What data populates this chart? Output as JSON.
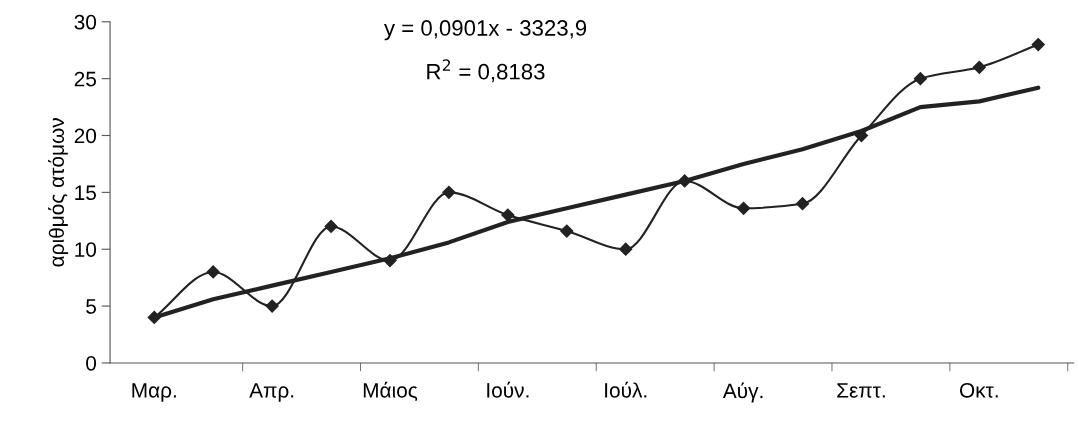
{
  "chart_data": {
    "type": "line",
    "ylabel": "αριθμός ατόμων",
    "annotations": [
      "y = 0,0901x - 3323,9",
      "R$^{2}$ = 0,8183"
    ],
    "categories": [
      "Μαρ.",
      null,
      "Απρ.",
      null,
      "Μάιος",
      null,
      "Ιούν.",
      null,
      "Ιούλ.",
      null,
      "Αύγ.",
      null,
      "Σεπτ.",
      null,
      "Οκτ.",
      null
    ],
    "series": [
      {
        "color": "#222222",
        "marker": "diamond",
        "values": [
          4,
          8,
          5,
          12,
          9,
          15,
          13,
          11.6,
          10,
          16,
          13.6,
          14,
          20,
          25,
          26,
          28
        ]
      },
      {
        "color": "#222222",
        "marker": "none",
        "values": [
          4.0,
          5.6,
          6.8,
          8.0,
          9.2,
          10.6,
          12.4,
          13.6,
          14.8,
          16.0,
          17.5,
          18.8,
          20.4,
          22.5,
          23.0,
          24.2
        ]
      }
    ],
    "ylim": [
      0,
      30
    ],
    "yticks": [
      0,
      5,
      10,
      15,
      20,
      25,
      30
    ],
    "grid": false,
    "legend": false
  }
}
